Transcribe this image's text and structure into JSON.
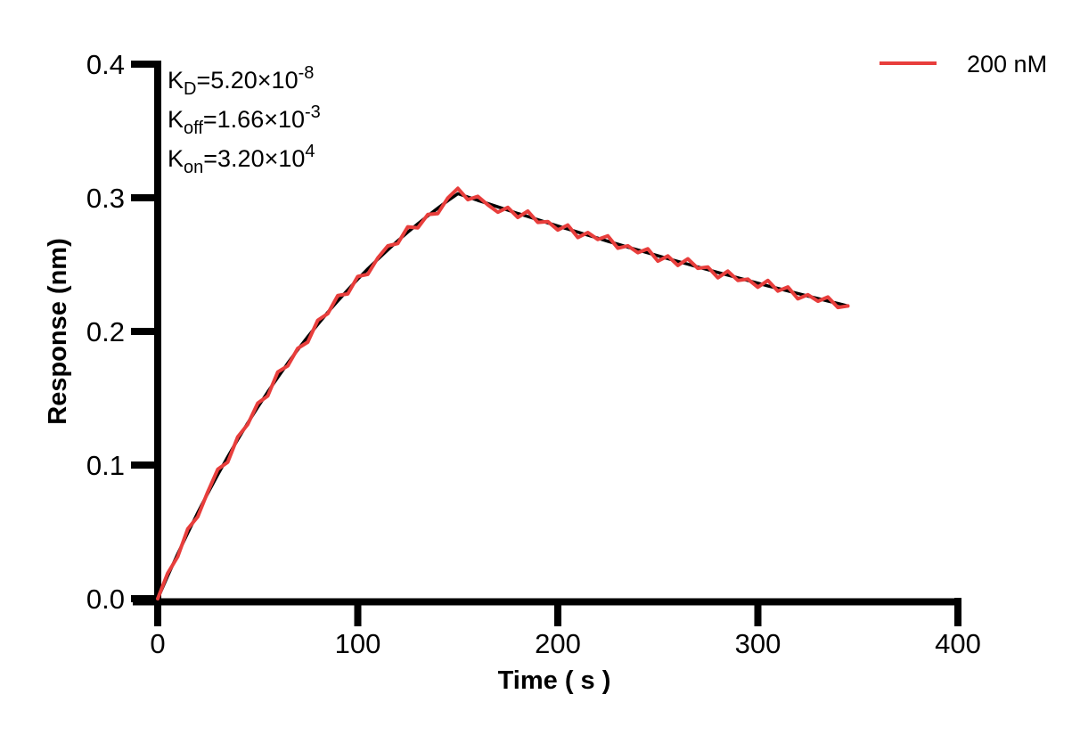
{
  "figure": {
    "background_color": "#ffffff",
    "axis_color": "#000000"
  },
  "annotation": {
    "lines": [
      {
        "k": "K",
        "sub": "D",
        "eq": "=5.20×10",
        "exp": "-8"
      },
      {
        "k": "K",
        "sub": "off",
        "eq": "=1.66×10",
        "exp": "-3"
      },
      {
        "k": "K",
        "sub": "on",
        "eq": "=3.20×10",
        "exp": "4"
      }
    ]
  },
  "legend": {
    "label": "200 nM",
    "color": "#E83E3C"
  },
  "axes": {
    "x": {
      "label": "Time ( s )",
      "tick_labels": [
        "0",
        "100",
        "200",
        "300",
        "400"
      ],
      "range": [
        0,
        400
      ]
    },
    "y": {
      "label": "Response (nm)",
      "tick_labels": [
        "0.0",
        "0.1",
        "0.2",
        "0.3",
        "0.4"
      ],
      "range": [
        0.0,
        0.4
      ]
    }
  },
  "chart_data": {
    "type": "line",
    "title": "",
    "xlabel": "Time ( s )",
    "ylabel": "Response (nm)",
    "xlim": [
      0,
      400
    ],
    "ylim": [
      0.0,
      0.4
    ],
    "grid": false,
    "legend_position": "top-right",
    "kinetic_constants": {
      "KD": 5.2e-08,
      "Koff": 0.00166,
      "Kon": 32000.0
    },
    "association_end_s": 150,
    "x": [
      0,
      5,
      10,
      15,
      20,
      25,
      30,
      35,
      40,
      45,
      50,
      55,
      60,
      65,
      70,
      75,
      80,
      85,
      90,
      95,
      100,
      105,
      110,
      115,
      120,
      125,
      130,
      135,
      140,
      145,
      150,
      155,
      160,
      165,
      170,
      175,
      180,
      185,
      190,
      195,
      200,
      205,
      210,
      215,
      220,
      225,
      230,
      235,
      240,
      245,
      250,
      255,
      260,
      265,
      270,
      275,
      280,
      285,
      290,
      295,
      300,
      305,
      310,
      315,
      320,
      325,
      330,
      335,
      340,
      345
    ],
    "series": [
      {
        "name": "fit",
        "color": "#000000",
        "values": [
          0.0,
          0.0171,
          0.0334,
          0.0492,
          0.0643,
          0.0788,
          0.0928,
          0.1062,
          0.1191,
          0.1314,
          0.1433,
          0.1547,
          0.1656,
          0.1762,
          0.1863,
          0.196,
          0.2053,
          0.2143,
          0.2229,
          0.2311,
          0.2391,
          0.2467,
          0.254,
          0.261,
          0.2678,
          0.2743,
          0.2805,
          0.2865,
          0.2922,
          0.2978,
          0.3031,
          0.3006,
          0.2981,
          0.2957,
          0.2932,
          0.2908,
          0.2883,
          0.286,
          0.2836,
          0.2812,
          0.2789,
          0.2766,
          0.2743,
          0.272,
          0.2698,
          0.2675,
          0.2653,
          0.2631,
          0.2609,
          0.2588,
          0.2566,
          0.2545,
          0.2524,
          0.2503,
          0.2482,
          0.2462,
          0.2441,
          0.2421,
          0.2401,
          0.2381,
          0.2361,
          0.2341,
          0.2322,
          0.2303,
          0.2284,
          0.2265,
          0.2246,
          0.2227,
          0.2209,
          0.2191
        ]
      },
      {
        "name": "200 nM",
        "color": "#E83E3C",
        "values": [
          0.0,
          0.0191,
          0.0314,
          0.0522,
          0.0613,
          0.0798,
          0.0968,
          0.1022,
          0.1211,
          0.1304,
          0.1463,
          0.1517,
          0.1696,
          0.1742,
          0.1873,
          0.192,
          0.2083,
          0.2133,
          0.2269,
          0.2281,
          0.2411,
          0.2427,
          0.255,
          0.264,
          0.2658,
          0.2783,
          0.2775,
          0.2875,
          0.2882,
          0.2998,
          0.3071,
          0.2986,
          0.3011,
          0.2947,
          0.2892,
          0.2928,
          0.2853,
          0.29,
          0.2816,
          0.2822,
          0.2759,
          0.2796,
          0.2703,
          0.274,
          0.2688,
          0.2715,
          0.2623,
          0.2641,
          0.2589,
          0.2618,
          0.2526,
          0.2565,
          0.2494,
          0.2543,
          0.2472,
          0.2482,
          0.2401,
          0.2451,
          0.2381,
          0.2391,
          0.2331,
          0.2381,
          0.2302,
          0.2333,
          0.2244,
          0.2275,
          0.2226,
          0.2257,
          0.2179,
          0.2191
        ]
      }
    ]
  }
}
